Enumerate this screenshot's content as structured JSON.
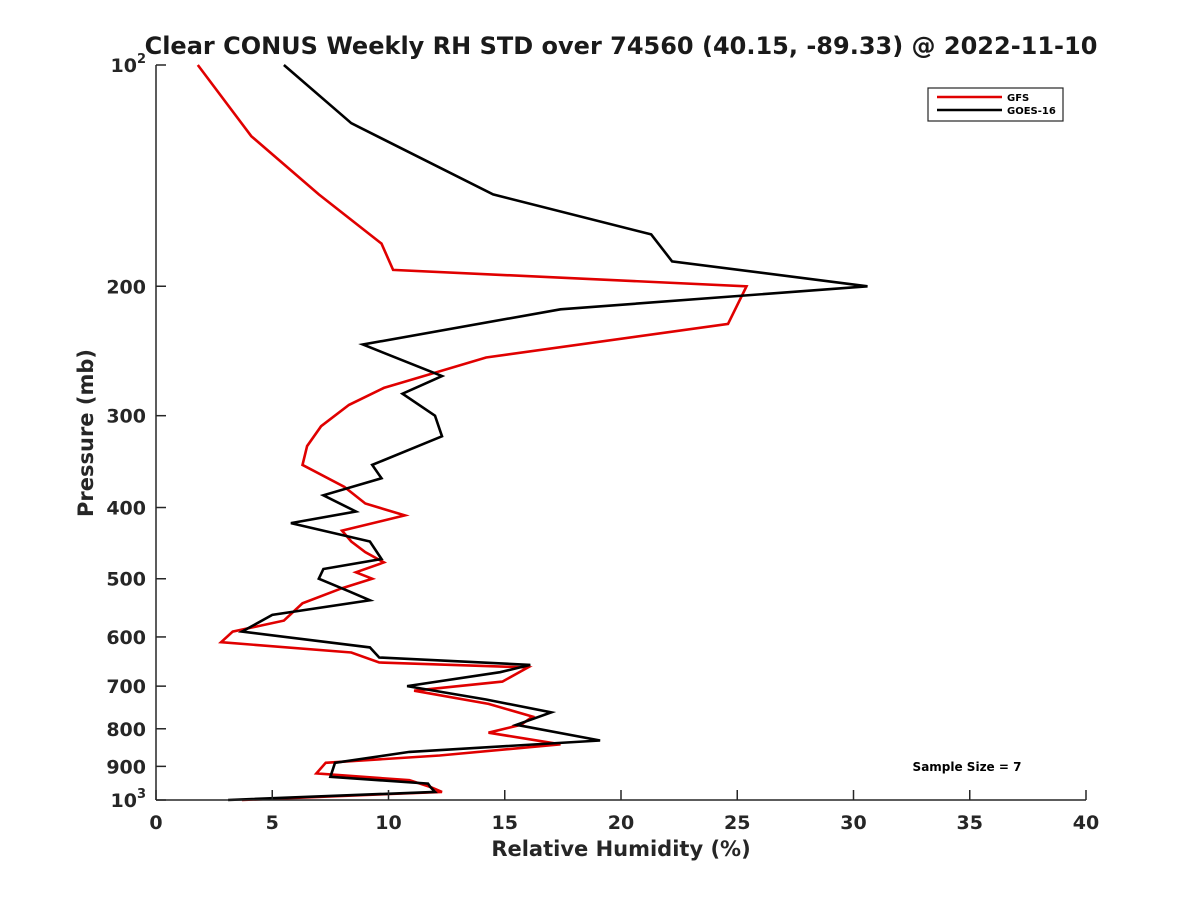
{
  "chart_data": {
    "type": "line",
    "title": "Clear CONUS Weekly RH STD over 74560 (40.15, -89.33) @ 2022-11-10",
    "xlabel": "Relative Humidity (%)",
    "ylabel": "Pressure (mb)",
    "xlim": [
      0,
      40
    ],
    "ylim": [
      100,
      1000
    ],
    "y_scale": "log",
    "y_reversed": true,
    "grid": false,
    "legend_position": "top-right",
    "x_ticks": [
      "0",
      "5",
      "10",
      "15",
      "20",
      "25",
      "30",
      "35",
      "40"
    ],
    "y_ticks": [
      {
        "value": 100,
        "base": "10",
        "exp": "2"
      },
      {
        "value": 200,
        "label": "200"
      },
      {
        "value": 300,
        "label": "300"
      },
      {
        "value": 400,
        "label": "400"
      },
      {
        "value": 500,
        "label": "500"
      },
      {
        "value": 600,
        "label": "600"
      },
      {
        "value": 700,
        "label": "700"
      },
      {
        "value": 800,
        "label": "800"
      },
      {
        "value": 900,
        "label": "900"
      },
      {
        "value": 1000,
        "base": "10",
        "exp": "3"
      }
    ],
    "series": [
      {
        "name": "GFS",
        "color": "#e00000",
        "points": [
          [
            1.8,
            100
          ],
          [
            4.1,
            125
          ],
          [
            7,
            150
          ],
          [
            9.7,
            175
          ],
          [
            10.2,
            190
          ],
          [
            25.4,
            200
          ],
          [
            24.6,
            225
          ],
          [
            14.2,
            250
          ],
          [
            9.8,
            275
          ],
          [
            8.3,
            290
          ],
          [
            7.1,
            310
          ],
          [
            6.5,
            330
          ],
          [
            6.3,
            350
          ],
          [
            8.1,
            375
          ],
          [
            9,
            395
          ],
          [
            10.7,
            410
          ],
          [
            8,
            430
          ],
          [
            8.4,
            445
          ],
          [
            9,
            460
          ],
          [
            9.8,
            475
          ],
          [
            8.6,
            490
          ],
          [
            9.3,
            500
          ],
          [
            8,
            515
          ],
          [
            6.3,
            540
          ],
          [
            5.5,
            570
          ],
          [
            3.3,
            590
          ],
          [
            2.8,
            610
          ],
          [
            8.4,
            630
          ],
          [
            9.6,
            650
          ],
          [
            16,
            660
          ],
          [
            14.9,
            690
          ],
          [
            11.1,
            710
          ],
          [
            14.3,
            740
          ],
          [
            16.2,
            770
          ],
          [
            15.7,
            790
          ],
          [
            14.3,
            810
          ],
          [
            17.4,
            840
          ],
          [
            12.2,
            870
          ],
          [
            7.3,
            890
          ],
          [
            6.9,
            920
          ],
          [
            10.9,
            940
          ],
          [
            11.8,
            960
          ],
          [
            12.3,
            975
          ],
          [
            3.7,
            1000
          ]
        ]
      },
      {
        "name": "GOES-16",
        "color": "#000000",
        "points": [
          [
            5.5,
            100
          ],
          [
            8.4,
            120
          ],
          [
            14.5,
            150
          ],
          [
            21.3,
            170
          ],
          [
            22.2,
            185
          ],
          [
            30.6,
            200
          ],
          [
            17.4,
            215
          ],
          [
            8.9,
            240
          ],
          [
            12.3,
            265
          ],
          [
            10.6,
            280
          ],
          [
            12,
            300
          ],
          [
            12.3,
            320
          ],
          [
            9.3,
            350
          ],
          [
            9.7,
            365
          ],
          [
            7.2,
            385
          ],
          [
            8.6,
            405
          ],
          [
            5.8,
            420
          ],
          [
            9.2,
            445
          ],
          [
            9.7,
            470
          ],
          [
            7.2,
            485
          ],
          [
            7,
            500
          ],
          [
            8.3,
            520
          ],
          [
            9.2,
            535
          ],
          [
            5,
            560
          ],
          [
            3.7,
            590
          ],
          [
            9.2,
            620
          ],
          [
            9.6,
            640
          ],
          [
            16.1,
            655
          ],
          [
            14.8,
            670
          ],
          [
            10.8,
            700
          ],
          [
            14.2,
            730
          ],
          [
            17,
            760
          ],
          [
            15.5,
            790
          ],
          [
            19.1,
            830
          ],
          [
            10.9,
            860
          ],
          [
            7.7,
            890
          ],
          [
            7.5,
            930
          ],
          [
            11.7,
            950
          ],
          [
            11.8,
            960
          ],
          [
            12,
            975
          ],
          [
            3.1,
            1000
          ]
        ]
      }
    ],
    "annotation": "Sample Size = 7"
  }
}
